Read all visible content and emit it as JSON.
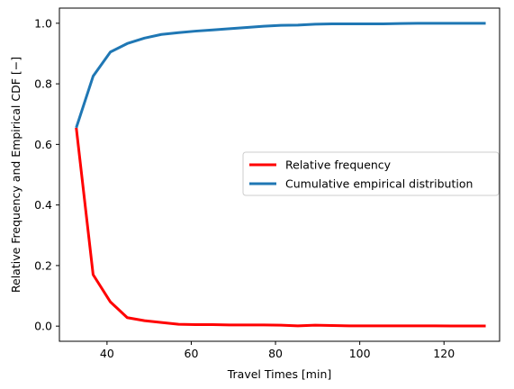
{
  "chart_data": {
    "type": "line",
    "title": "",
    "xlabel": "Travel Times [min]",
    "ylabel": "Relative Frequency and Empirical CDF [−]",
    "xlim": [
      28.7,
      133.2
    ],
    "ylim": [
      -0.05,
      1.05
    ],
    "xticks": [
      40,
      60,
      80,
      100,
      120
    ],
    "xtick_labels": [
      "40",
      "60",
      "80",
      "100",
      "120"
    ],
    "yticks": [
      0.0,
      0.2,
      0.4,
      0.6,
      0.8,
      1.0
    ],
    "ytick_labels": [
      "0.0",
      "0.2",
      "0.4",
      "0.6",
      "0.8",
      "1.0"
    ],
    "grid": false,
    "legend_position": "center-right",
    "series": [
      {
        "name": "Relative frequency",
        "color": "#ff0000",
        "x": [
          32.7,
          36.7,
          40.8,
          44.8,
          48.9,
          52.9,
          57.0,
          61.0,
          65.1,
          69.1,
          73.2,
          77.2,
          81.3,
          85.3,
          89.4,
          93.4,
          97.5,
          101.5,
          105.6,
          109.6,
          113.7,
          117.7,
          121.8,
          125.8,
          129.9
        ],
        "y": [
          0.655,
          0.17,
          0.08,
          0.028,
          0.018,
          0.012,
          0.006,
          0.005,
          0.005,
          0.004,
          0.004,
          0.004,
          0.003,
          0.001,
          0.003,
          0.002,
          0.001,
          0.001,
          0.001,
          0.001,
          0.001,
          0.001,
          0.0005,
          0.0005,
          0.0005
        ]
      },
      {
        "name": "Cumulative empirical distribution",
        "color": "#1f77b4",
        "x": [
          32.7,
          36.7,
          40.8,
          44.8,
          48.9,
          52.9,
          57.0,
          61.0,
          65.1,
          69.1,
          73.2,
          77.2,
          81.3,
          85.3,
          89.4,
          93.4,
          97.5,
          101.5,
          105.6,
          109.6,
          113.7,
          117.7,
          121.8,
          125.8,
          129.9
        ],
        "y": [
          0.655,
          0.825,
          0.905,
          0.933,
          0.951,
          0.963,
          0.969,
          0.974,
          0.978,
          0.982,
          0.986,
          0.99,
          0.993,
          0.994,
          0.997,
          0.998,
          0.998,
          0.998,
          0.998,
          0.999,
          1.0,
          1.0,
          1.0,
          1.0,
          1.0
        ]
      }
    ]
  }
}
